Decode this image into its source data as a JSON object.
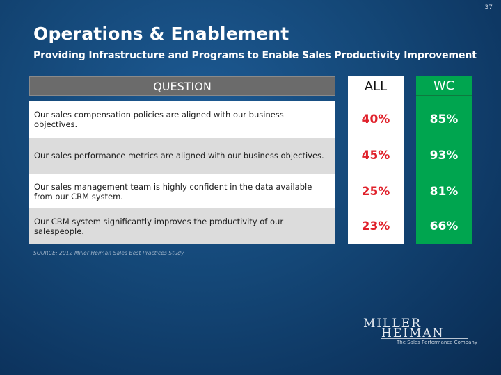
{
  "page_number": "37",
  "title": "Operations & Enablement",
  "subtitle": "Providing Infrastructure and Programs to Enable Sales Productivity Improvement",
  "table": {
    "question_header": "QUESTION",
    "col_all_header": "ALL",
    "col_wc_header": "WC",
    "rows": [
      {
        "question": "Our sales compensation policies are aligned with our business objectives.",
        "all": "40%",
        "wc": "85%"
      },
      {
        "question": "Our sales performance metrics are aligned with our business objectives.",
        "all": "45%",
        "wc": "93%"
      },
      {
        "question": "Our sales management team is highly confident in the data available from our CRM system.",
        "all": "25%",
        "wc": "81%"
      },
      {
        "question": "Our CRM system significantly improves the productivity of our salespeople.",
        "all": "23%",
        "wc": "66%"
      }
    ]
  },
  "source": "SOURCE: 2012 Miller Heiman Sales Best Practices Study",
  "logo": {
    "line1": "MILLER",
    "line2": "HEIMAN",
    "tagline": "The Sales Performance Company"
  },
  "colors": {
    "background": "#144777",
    "all_value": "#e0202a",
    "wc_column": "#00a54f",
    "question_header": "#6b6b6b"
  }
}
